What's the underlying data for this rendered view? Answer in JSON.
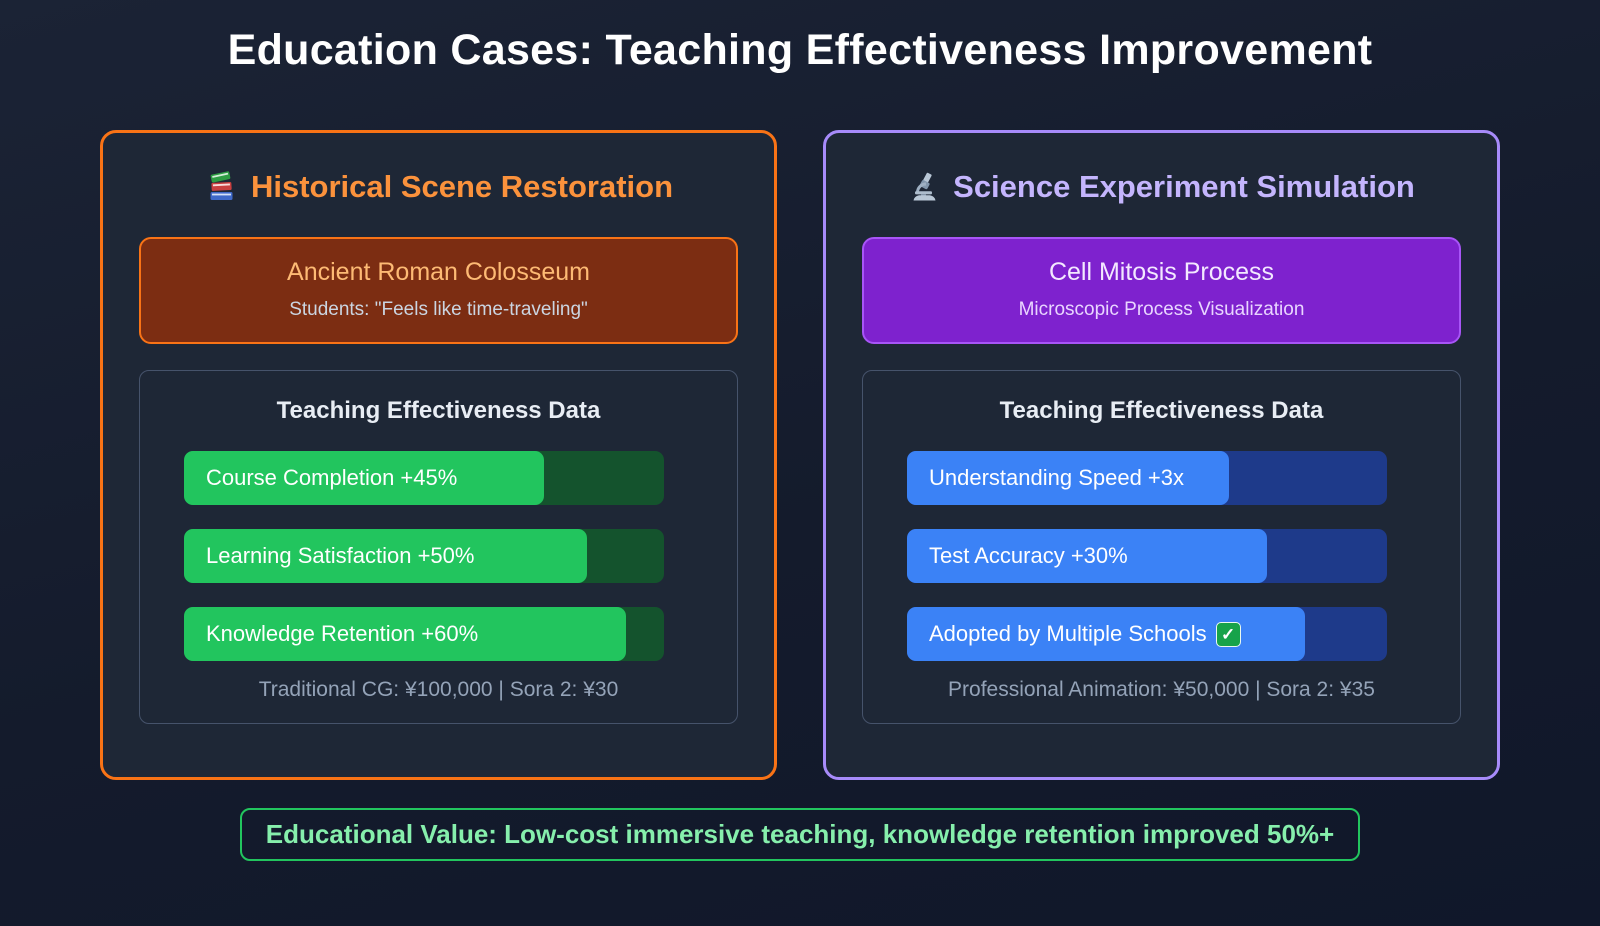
{
  "page": {
    "title": "Education Cases: Teaching Effectiveness Improvement"
  },
  "colors": {
    "page-bg": "#141b2c",
    "card-bg": "#1e2736",
    "panel-border": "#46536b",
    "muted-text": "#94a3b8",
    "orange-accent": "#f97316",
    "orange-header": "#fb923c",
    "orange-deep": "#7c2d12",
    "orange-light": "#fdba74",
    "purple-accent": "#a78bfa",
    "purple-header": "#c4b5fd",
    "purple-deep": "#7e22ce",
    "purple-border": "#a855f7",
    "purple-light": "#f3e8ff",
    "green-fill": "#22c55e",
    "green-track": "#14532d",
    "blue-fill": "#3b82f6",
    "blue-track": "#1e3a8a",
    "green-accent": "#22c55e",
    "green-light": "#86efac"
  },
  "cards": [
    {
      "title": "Historical Scene Restoration",
      "icon": "books-icon",
      "feature": {
        "title": "Ancient Roman Colosseum",
        "subtitle": "Students: \"Feels like time-traveling\""
      },
      "data_panel": {
        "heading": "Teaching Effectiveness Data",
        "bars": [
          {
            "label": "Course Completion +45%",
            "percent": 75
          },
          {
            "label": "Learning Satisfaction +50%",
            "percent": 84
          },
          {
            "label": "Knowledge Retention +60%",
            "percent": 92
          }
        ],
        "footnote": "Traditional CG: ¥100,000 | Sora 2: ¥30"
      }
    },
    {
      "title": "Science Experiment Simulation",
      "icon": "microscope-icon",
      "feature": {
        "title": "Cell Mitosis Process",
        "subtitle": "Microscopic Process Visualization"
      },
      "data_panel": {
        "heading": "Teaching Effectiveness Data",
        "bars": [
          {
            "label": "Understanding Speed +3x",
            "percent": 67
          },
          {
            "label": "Test Accuracy +30%",
            "percent": 75
          },
          {
            "label": "Adopted by Multiple Schools",
            "percent": 83,
            "check_icon": true
          }
        ],
        "footnote": "Professional Animation: ¥50,000 | Sora 2: ¥35"
      }
    }
  ],
  "footer": {
    "text": "Educational Value: Low-cost immersive teaching, knowledge retention improved 50%+"
  }
}
